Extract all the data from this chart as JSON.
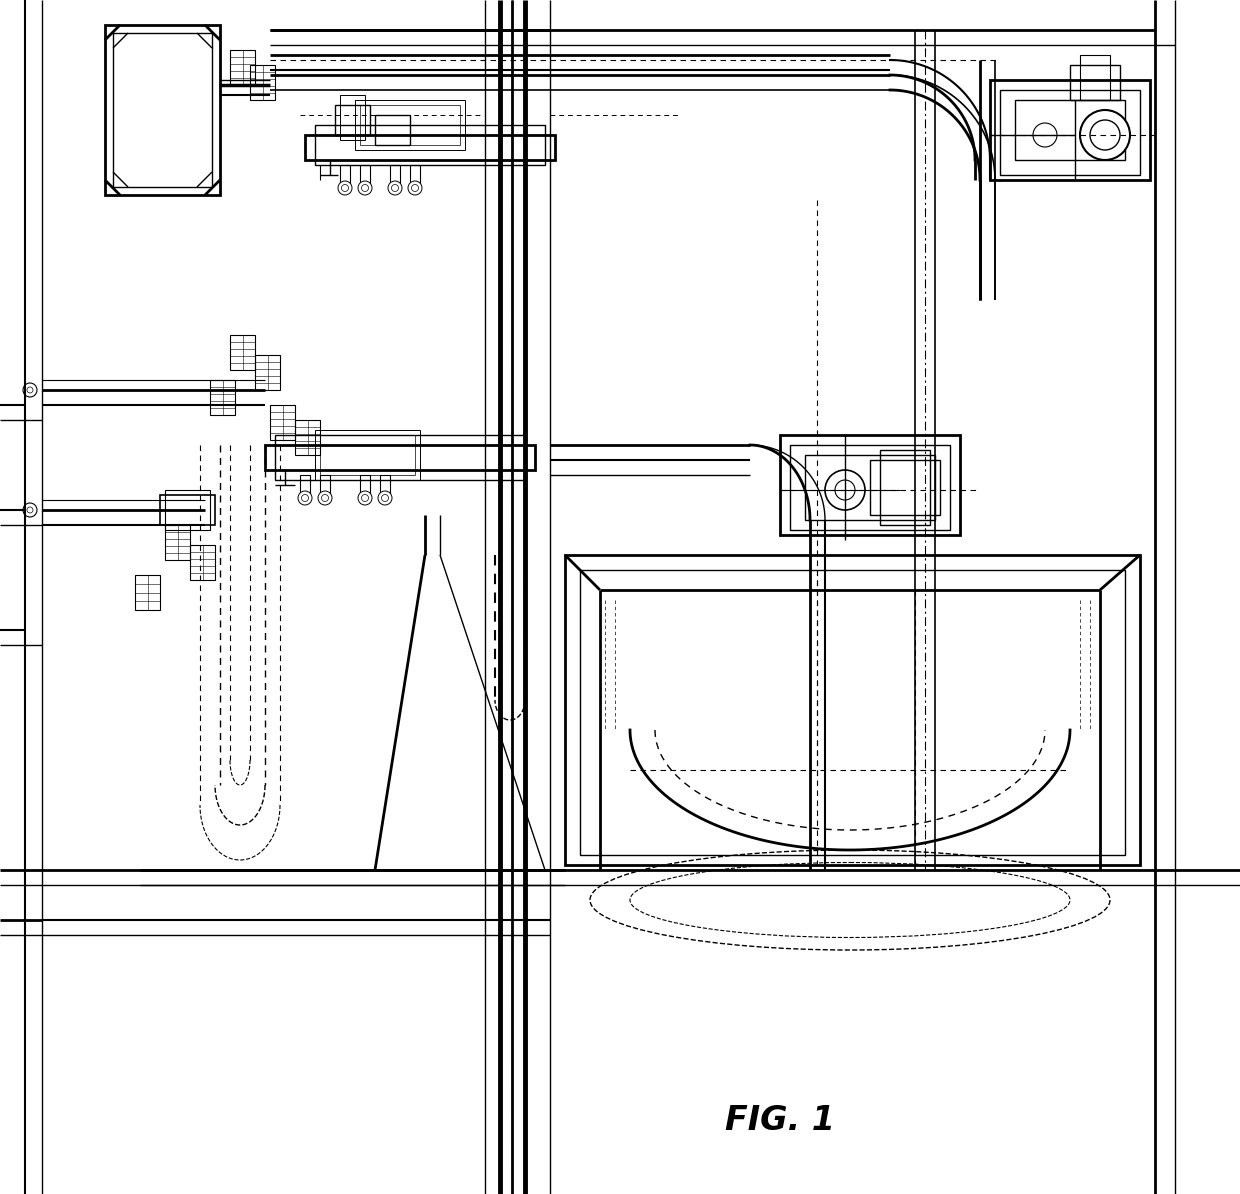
{
  "title": "FIG. 1",
  "bg_color": "#ffffff",
  "line_color": "#000000",
  "fig_width": 12.4,
  "fig_height": 11.94
}
